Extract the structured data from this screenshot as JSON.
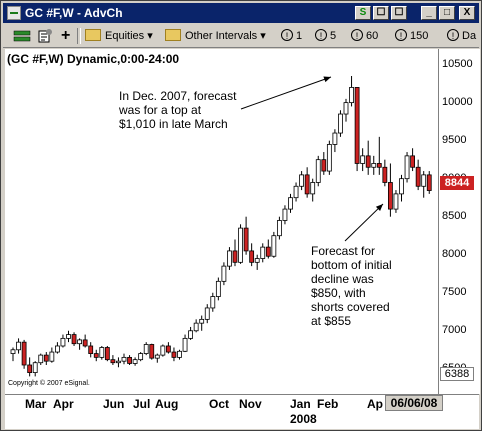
{
  "window": {
    "title": "GC #F,W - AdvCh",
    "title_buttons": [
      "S",
      "☐",
      "☐",
      "_",
      "□",
      "X"
    ]
  },
  "toolbar": {
    "equities_label": "Equities",
    "other_intervals_label": "Other Intervals",
    "intervals": [
      "1",
      "5",
      "60",
      "150"
    ],
    "da_label": "Da"
  },
  "chart": {
    "symbol_label": "(GC #F,W) Dynamic,0:00-24:00",
    "annotation_top": [
      "In Dec. 2007, forecast",
      "was for a top at",
      "$1,010 in late March"
    ],
    "annotation_bottom": [
      "Forecast for",
      "bottom of initial",
      "decline was",
      "$850, with",
      "shorts covered",
      "at $855"
    ],
    "copyright": "Copyright © 2007 eSignal.",
    "current_price_tag": "8844",
    "low_price_tag": "6388",
    "date_box": "06/06/08",
    "x_year": "2008",
    "colors": {
      "up": "#ffffff",
      "down": "#cc2222",
      "outline": "#000000",
      "price_tag": "#cc2222"
    }
  },
  "chart_data": {
    "type": "candlestick",
    "y_ticks": [
      10500,
      10000,
      9500,
      9000,
      8500,
      8000,
      7500,
      7000,
      6500
    ],
    "x_ticks": [
      "Mar",
      "Apr",
      "Jun",
      "Jul",
      "Aug",
      "Oct",
      "Nov",
      "Jan",
      "Feb",
      "Ap"
    ],
    "ylim": [
      6300,
      10600
    ],
    "candles": [
      [
        6700,
        6780,
        6600,
        6750
      ],
      [
        6750,
        6900,
        6700,
        6850
      ],
      [
        6850,
        6880,
        6500,
        6550
      ],
      [
        6550,
        6650,
        6400,
        6450
      ],
      [
        6450,
        6600,
        6400,
        6580
      ],
      [
        6580,
        6700,
        6550,
        6680
      ],
      [
        6680,
        6720,
        6550,
        6600
      ],
      [
        6600,
        6780,
        6580,
        6720
      ],
      [
        6720,
        6850,
        6700,
        6800
      ],
      [
        6800,
        6950,
        6780,
        6900
      ],
      [
        6900,
        7000,
        6850,
        6950
      ],
      [
        6950,
        6980,
        6800,
        6830
      ],
      [
        6830,
        6900,
        6750,
        6880
      ],
      [
        6880,
        6950,
        6780,
        6800
      ],
      [
        6800,
        6850,
        6650,
        6700
      ],
      [
        6700,
        6750,
        6600,
        6650
      ],
      [
        6650,
        6800,
        6620,
        6780
      ],
      [
        6780,
        6800,
        6600,
        6620
      ],
      [
        6620,
        6680,
        6550,
        6580
      ],
      [
        6580,
        6650,
        6520,
        6600
      ],
      [
        6600,
        6700,
        6560,
        6650
      ],
      [
        6650,
        6680,
        6550,
        6570
      ],
      [
        6570,
        6650,
        6540,
        6620
      ],
      [
        6620,
        6720,
        6600,
        6700
      ],
      [
        6700,
        6850,
        6680,
        6820
      ],
      [
        6820,
        6830,
        6620,
        6640
      ],
      [
        6640,
        6700,
        6580,
        6680
      ],
      [
        6680,
        6820,
        6660,
        6800
      ],
      [
        6800,
        6850,
        6700,
        6720
      ],
      [
        6720,
        6780,
        6600,
        6650
      ],
      [
        6650,
        6750,
        6620,
        6730
      ],
      [
        6730,
        6950,
        6720,
        6900
      ],
      [
        6900,
        7050,
        6880,
        7000
      ],
      [
        7000,
        7150,
        6980,
        7100
      ],
      [
        7100,
        7200,
        7000,
        7150
      ],
      [
        7150,
        7350,
        7100,
        7300
      ],
      [
        7300,
        7500,
        7250,
        7450
      ],
      [
        7450,
        7700,
        7400,
        7650
      ],
      [
        7650,
        7900,
        7600,
        7850
      ],
      [
        7850,
        8100,
        7800,
        8050
      ],
      [
        8050,
        8200,
        7850,
        7900
      ],
      [
        7900,
        8400,
        7880,
        8350
      ],
      [
        8350,
        8500,
        8000,
        8050
      ],
      [
        8050,
        8150,
        7850,
        7900
      ],
      [
        7900,
        8000,
        7800,
        7950
      ],
      [
        7950,
        8150,
        7900,
        8100
      ],
      [
        8100,
        8200,
        7950,
        7980
      ],
      [
        7980,
        8300,
        7960,
        8250
      ],
      [
        8250,
        8500,
        8200,
        8450
      ],
      [
        8450,
        8650,
        8400,
        8600
      ],
      [
        8600,
        8800,
        8550,
        8750
      ],
      [
        8750,
        8950,
        8700,
        8900
      ],
      [
        8900,
        9100,
        8850,
        9050
      ],
      [
        9050,
        9150,
        8750,
        8800
      ],
      [
        8800,
        9000,
        8700,
        8950
      ],
      [
        8950,
        9300,
        8900,
        9250
      ],
      [
        9250,
        9350,
        9050,
        9100
      ],
      [
        9100,
        9500,
        9050,
        9450
      ],
      [
        9450,
        9650,
        9350,
        9600
      ],
      [
        9600,
        9900,
        9550,
        9850
      ],
      [
        9850,
        10050,
        9750,
        10000
      ],
      [
        10000,
        10350,
        9950,
        10200
      ],
      [
        10200,
        10200,
        9100,
        9200
      ],
      [
        9200,
        9400,
        9100,
        9300
      ],
      [
        9300,
        9500,
        9050,
        9150
      ],
      [
        9150,
        9300,
        9050,
        9200
      ],
      [
        9200,
        9550,
        9050,
        9150
      ],
      [
        9150,
        9250,
        8900,
        8950
      ],
      [
        8950,
        9200,
        8500,
        8600
      ],
      [
        8600,
        8850,
        8550,
        8800
      ],
      [
        8800,
        9050,
        8700,
        9000
      ],
      [
        9000,
        9350,
        8950,
        9300
      ],
      [
        9300,
        9400,
        9100,
        9150
      ],
      [
        9150,
        9250,
        8850,
        8900
      ],
      [
        8900,
        9100,
        8750,
        9050
      ],
      [
        9050,
        9100,
        8800,
        8844
      ]
    ]
  }
}
